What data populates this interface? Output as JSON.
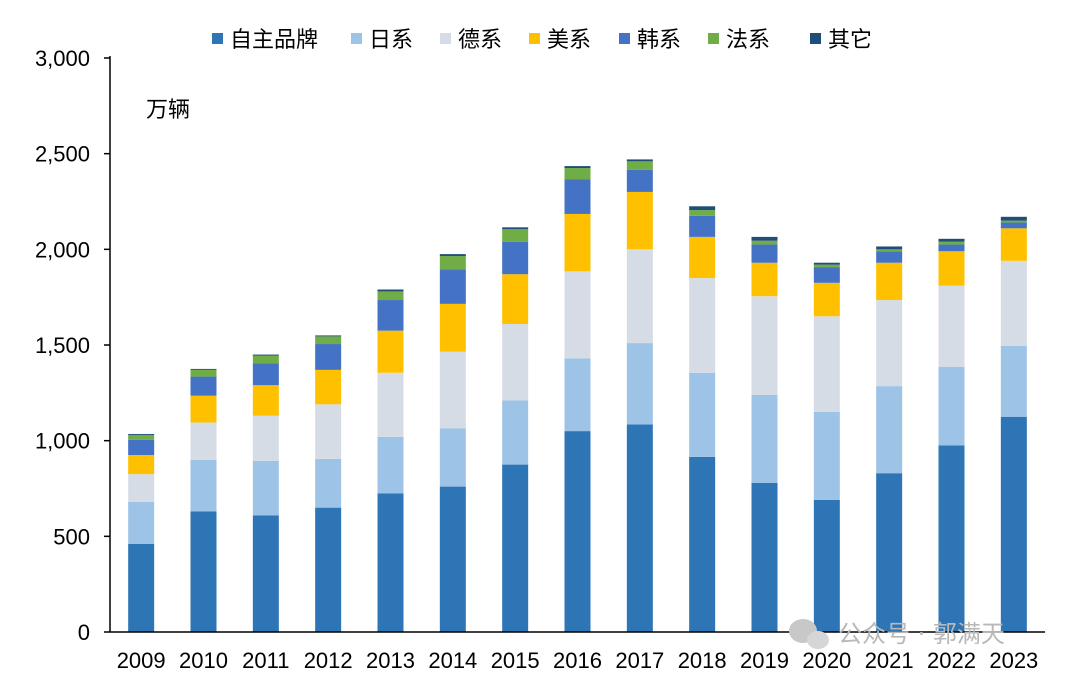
{
  "chart_data": {
    "type": "bar",
    "stacked": true,
    "unit_label": "万辆",
    "categories": [
      "2009",
      "2010",
      "2011",
      "2012",
      "2013",
      "2014",
      "2015",
      "2016",
      "2017",
      "2018",
      "2019",
      "2020",
      "2021",
      "2022",
      "2023"
    ],
    "ylim": [
      0,
      3000
    ],
    "yticks": [
      "0",
      "500",
      "1,000",
      "1,500",
      "2,000",
      "2,500",
      "3,000"
    ],
    "ytick_values": [
      0,
      500,
      1000,
      1500,
      2000,
      2500,
      3000
    ],
    "legend_position": "top",
    "grid": false,
    "series": [
      {
        "name": "自主品牌",
        "color": "#2E75B6",
        "values": [
          460,
          630,
          610,
          650,
          725,
          760,
          875,
          1050,
          1085,
          915,
          780,
          690,
          830,
          975,
          1125
        ]
      },
      {
        "name": "日系",
        "color": "#9DC3E6",
        "values": [
          220,
          270,
          285,
          255,
          295,
          305,
          335,
          380,
          425,
          440,
          460,
          460,
          455,
          410,
          370
        ]
      },
      {
        "name": "德系",
        "color": "#D6DCE5",
        "values": [
          145,
          195,
          235,
          285,
          335,
          400,
          400,
          455,
          490,
          495,
          515,
          500,
          450,
          425,
          445
        ]
      },
      {
        "name": "美系",
        "color": "#FFC000",
        "values": [
          100,
          140,
          160,
          180,
          220,
          250,
          260,
          300,
          300,
          215,
          175,
          175,
          195,
          180,
          170
        ]
      },
      {
        "name": "韩系",
        "color": "#4472C4",
        "values": [
          80,
          100,
          115,
          135,
          160,
          180,
          170,
          180,
          115,
          110,
          95,
          80,
          60,
          35,
          30
        ]
      },
      {
        "name": "法系",
        "color": "#70AD47",
        "values": [
          25,
          35,
          40,
          40,
          45,
          70,
          65,
          60,
          45,
          30,
          20,
          15,
          10,
          15,
          10
        ]
      },
      {
        "name": "其它",
        "color": "#1F4E79",
        "values": [
          5,
          5,
          5,
          5,
          10,
          10,
          10,
          10,
          10,
          20,
          20,
          10,
          15,
          15,
          20
        ]
      }
    ]
  },
  "watermark": "公众号 · 郭满天"
}
